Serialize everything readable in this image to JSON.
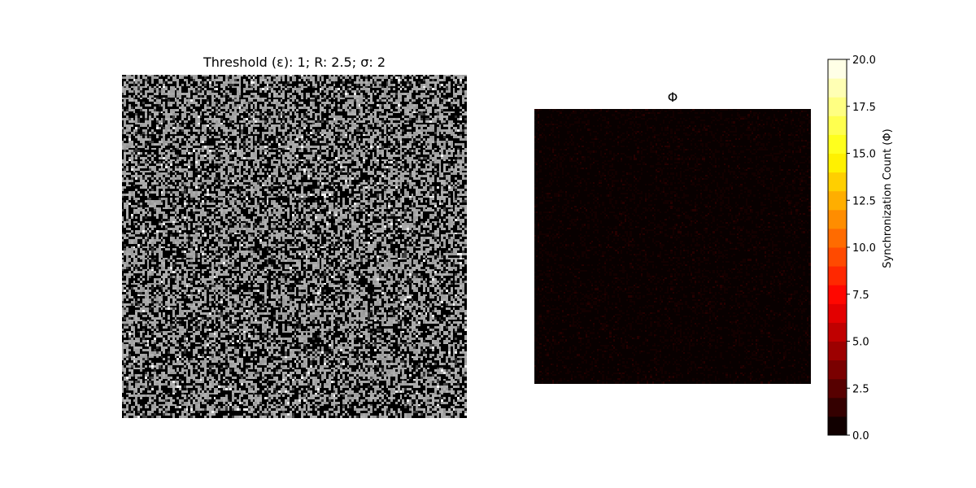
{
  "chart_data": [
    {
      "type": "heatmap",
      "title": "Threshold (ε): 1; R: 2.5; σ: 2",
      "colormap": "gray",
      "grid_size": 150,
      "values": "binary-ish noise, mostly black (0) and light gray (~0.65) with scattered white spots",
      "axes": "off"
    },
    {
      "type": "heatmap",
      "title": "Φ",
      "colormap": "hot",
      "grid_size": 150,
      "values": "near zero everywhere (mostly 0, sparse values around 1)",
      "axes": "off",
      "colorbar": {
        "label": "Synchronization Count (Φ)",
        "vmin": 0.0,
        "vmax": 20.0,
        "levels": 20,
        "ticks": [
          "0.0",
          "2.5",
          "5.0",
          "7.5",
          "10.0",
          "12.5",
          "15.0",
          "17.5",
          "20.0"
        ]
      }
    }
  ]
}
